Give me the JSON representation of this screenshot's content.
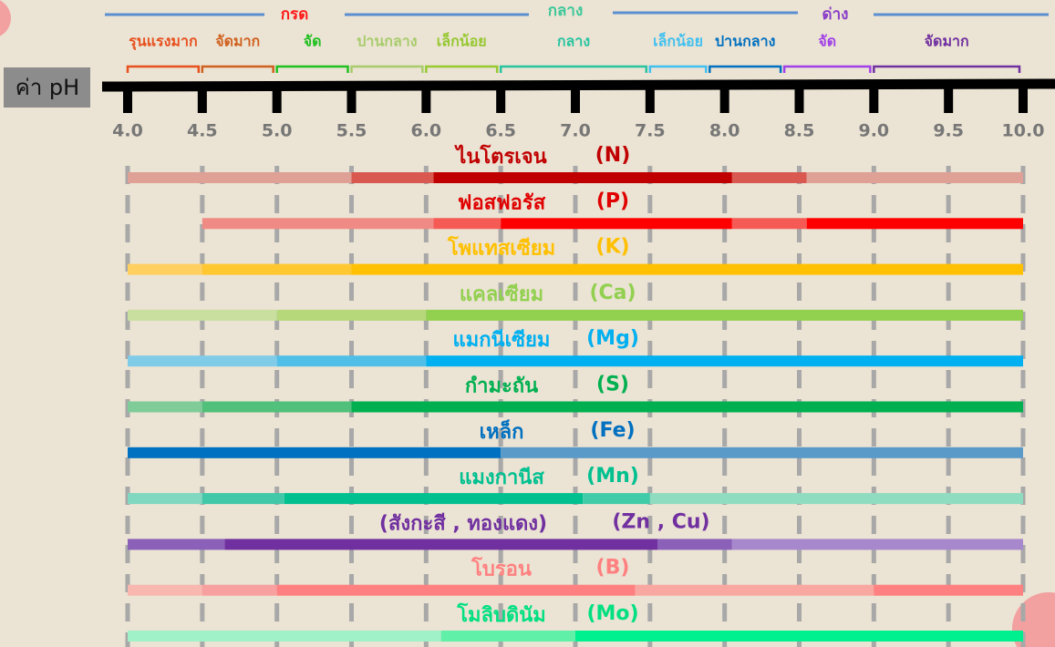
{
  "header": {
    "groups": [
      {
        "label": "กรด",
        "color": "#ff1a1a"
      },
      {
        "label": "กลาง",
        "color": "#3cc89a"
      },
      {
        "label": "ด่าง",
        "color": "#8a3cc8"
      }
    ],
    "levels": [
      {
        "label": "รุนแรงมาก",
        "color": "#e8501e",
        "from": 4.0,
        "to": 4.5
      },
      {
        "label": "จัดมาก",
        "color": "#d0601e",
        "from": 4.5,
        "to": 5.0
      },
      {
        "label": "จัด",
        "color": "#20c020",
        "from": 5.0,
        "to": 5.5
      },
      {
        "label": "ปานกลาง",
        "color": "#a8cc6c",
        "from": 5.5,
        "to": 6.0
      },
      {
        "label": "เล็กน้อย",
        "color": "#96c832",
        "from": 6.0,
        "to": 6.5
      },
      {
        "label": "กลาง",
        "color": "#28c4a0",
        "from": 6.5,
        "to": 7.5
      },
      {
        "label": "เล็กน้อย",
        "color": "#40c0f0",
        "from": 7.5,
        "to": 7.9
      },
      {
        "label": "ปานกลาง",
        "color": "#0070c0",
        "from": 7.9,
        "to": 8.4
      },
      {
        "label": "จัด",
        "color": "#a040e8",
        "from": 8.4,
        "to": 9.0
      },
      {
        "label": "จัดมาก",
        "color": "#7030a0",
        "from": 9.0,
        "to": 10.0
      }
    ]
  },
  "axis": {
    "label": "ค่า pH",
    "ticks": [
      {
        "value": 4,
        "label": "4.0"
      },
      {
        "value": 4.5,
        "label": "4.5"
      },
      {
        "value": 5,
        "label": "5.0"
      },
      {
        "value": 5.5,
        "label": "5.5"
      },
      {
        "value": 6,
        "label": "6.0"
      },
      {
        "value": 6.5,
        "label": "6.5"
      },
      {
        "value": 7,
        "label": "7.0"
      },
      {
        "value": 7.5,
        "label": "7.5"
      },
      {
        "value": 8,
        "label": "8.0"
      },
      {
        "value": 8.5,
        "label": "8.5"
      },
      {
        "value": 9,
        "label": "9.0"
      },
      {
        "value": 9.5,
        "label": "9.5"
      },
      {
        "value": 10,
        "label": "10.0"
      }
    ]
  },
  "nutrients": [
    {
      "name": "ไนโตรเจน",
      "symbol": "(N)",
      "color": "#c00000",
      "segments": [
        {
          "from": 4.0,
          "to": 5.5,
          "color": "#dfa095"
        },
        {
          "from": 5.5,
          "to": 6.05,
          "color": "#d9584f"
        },
        {
          "from": 6.05,
          "to": 8.05,
          "color": "#c00000"
        },
        {
          "from": 8.05,
          "to": 8.55,
          "color": "#d9584f"
        },
        {
          "from": 8.55,
          "to": 10.0,
          "color": "#dfa095"
        }
      ]
    },
    {
      "name": "ฟอสฟอรัส",
      "symbol": "(P)",
      "color": "#e00000",
      "segments": [
        {
          "from": 4.5,
          "to": 6.05,
          "color": "#f08a85"
        },
        {
          "from": 6.05,
          "to": 6.5,
          "color": "#f55a55"
        },
        {
          "from": 6.5,
          "to": 8.05,
          "color": "#ff0000"
        },
        {
          "from": 8.05,
          "to": 8.55,
          "color": "#f55a55"
        },
        {
          "from": 8.55,
          "to": 10.0,
          "color": "#ff0000"
        }
      ]
    },
    {
      "name": "โพแทสเซียม",
      "symbol": "(K)",
      "color": "#ffc000",
      "segments": [
        {
          "from": 4.0,
          "to": 4.5,
          "color": "#ffd060"
        },
        {
          "from": 4.5,
          "to": 5.5,
          "color": "#ffc830"
        },
        {
          "from": 5.5,
          "to": 10.0,
          "color": "#ffc000"
        }
      ]
    },
    {
      "name": "แคลเซียม",
      "symbol": "(Ca)",
      "color": "#92d050",
      "segments": [
        {
          "from": 4.0,
          "to": 5.0,
          "color": "#c8dfa0"
        },
        {
          "from": 5.0,
          "to": 6.0,
          "color": "#b6d77a"
        },
        {
          "from": 6.0,
          "to": 10.0,
          "color": "#92d050"
        }
      ]
    },
    {
      "name": "แมกนีเซียม",
      "symbol": "(Mg)",
      "color": "#00b0f0",
      "segments": [
        {
          "from": 4.0,
          "to": 5.0,
          "color": "#80cce8"
        },
        {
          "from": 5.0,
          "to": 6.0,
          "color": "#50bfe8"
        },
        {
          "from": 6.0,
          "to": 10.0,
          "color": "#00b0f0"
        }
      ]
    },
    {
      "name": "กำมะถัน",
      "symbol": "(S)",
      "color": "#00b050",
      "segments": [
        {
          "from": 4.0,
          "to": 4.5,
          "color": "#80cc98"
        },
        {
          "from": 4.5,
          "to": 5.5,
          "color": "#50c07a"
        },
        {
          "from": 5.5,
          "to": 10.0,
          "color": "#00b050"
        }
      ]
    },
    {
      "name": "เหล็ก",
      "symbol": "(Fe)",
      "color": "#0070c0",
      "segments": [
        {
          "from": 4.0,
          "to": 6.5,
          "color": "#0070c0"
        },
        {
          "from": 6.5,
          "to": 10.0,
          "color": "#5a9ac8"
        }
      ]
    },
    {
      "name": "แมงกานีส",
      "symbol": "(Mn)",
      "color": "#00c090",
      "segments": [
        {
          "from": 4.0,
          "to": 4.5,
          "color": "#80d8c0"
        },
        {
          "from": 4.5,
          "to": 5.05,
          "color": "#40c8a8"
        },
        {
          "from": 5.05,
          "to": 7.05,
          "color": "#00c090"
        },
        {
          "from": 7.05,
          "to": 7.5,
          "color": "#40cca8"
        },
        {
          "from": 7.5,
          "to": 10.0,
          "color": "#90dcc0"
        }
      ]
    },
    {
      "name": "(สังกะสี , ทองแดง)",
      "symbol": "(Zn , Cu)",
      "color": "#7030a0",
      "segments": [
        {
          "from": 4.0,
          "to": 4.65,
          "color": "#8a60b8"
        },
        {
          "from": 4.65,
          "to": 7.55,
          "color": "#7030a0"
        },
        {
          "from": 7.55,
          "to": 8.05,
          "color": "#8a60b8"
        },
        {
          "from": 8.05,
          "to": 10.0,
          "color": "#a888cc"
        }
      ]
    },
    {
      "name": "โบรอน",
      "symbol": "(B)",
      "color": "#ff8080",
      "segments": [
        {
          "from": 4.0,
          "to": 4.5,
          "color": "#f8b8b0"
        },
        {
          "from": 4.5,
          "to": 5.0,
          "color": "#f8a0a0"
        },
        {
          "from": 5.0,
          "to": 7.4,
          "color": "#ff8080"
        },
        {
          "from": 7.4,
          "to": 9.0,
          "color": "#f8a8a0"
        },
        {
          "from": 9.0,
          "to": 10.0,
          "color": "#ff8080"
        }
      ]
    },
    {
      "name": "โมลิบดินัม",
      "symbol": "(Mo)",
      "color": "#00e080",
      "segments": [
        {
          "from": 4.0,
          "to": 6.1,
          "color": "#a0f0c8"
        },
        {
          "from": 6.1,
          "to": 7.0,
          "color": "#60f0a8"
        },
        {
          "from": 7.0,
          "to": 10.0,
          "color": "#00f090"
        }
      ]
    }
  ]
}
